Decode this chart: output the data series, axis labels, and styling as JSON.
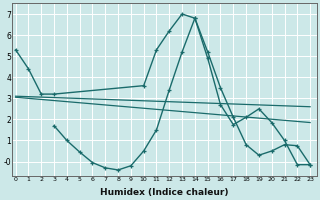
{
  "xlabel": "Humidex (Indice chaleur)",
  "bg_color": "#cce8e8",
  "line_color": "#1a6b6b",
  "grid_color": "#ffffff",
  "curve_upper": {
    "x": [
      0,
      1,
      2,
      3,
      10,
      11,
      12,
      13,
      14,
      15,
      16,
      17,
      18,
      19,
      20,
      21,
      22,
      23
    ],
    "y": [
      5.3,
      4.4,
      3.2,
      3.2,
      3.6,
      5.3,
      6.2,
      7.0,
      6.8,
      4.9,
      2.7,
      1.75,
      2.1,
      2.5,
      1.85,
      1.0,
      -0.15,
      -0.15
    ]
  },
  "curve_flat1": {
    "x": [
      0,
      23
    ],
    "y": [
      3.1,
      2.6
    ]
  },
  "curve_flat2": {
    "x": [
      0,
      23
    ],
    "y": [
      3.05,
      1.85
    ]
  },
  "curve_lower": {
    "x": [
      3,
      4,
      5,
      6,
      7,
      8,
      9,
      10,
      11,
      12,
      13,
      14,
      15,
      16,
      17,
      18,
      19,
      20,
      21,
      22,
      23
    ],
    "y": [
      1.7,
      1.0,
      0.45,
      -0.05,
      -0.3,
      -0.4,
      -0.2,
      0.5,
      1.5,
      3.4,
      5.2,
      6.8,
      5.2,
      3.5,
      2.1,
      0.8,
      0.3,
      0.5,
      0.8,
      0.75,
      -0.15
    ]
  },
  "ylim": [
    -0.7,
    7.5
  ],
  "xlim": [
    -0.3,
    23.5
  ],
  "yticks": [
    0,
    1,
    2,
    3,
    4,
    5,
    6,
    7
  ],
  "ytick_labels": [
    "-0",
    "1",
    "2",
    "3",
    "4",
    "5",
    "6",
    "7"
  ],
  "xticks": [
    0,
    1,
    2,
    3,
    4,
    5,
    6,
    7,
    8,
    9,
    10,
    11,
    12,
    13,
    14,
    15,
    16,
    17,
    18,
    19,
    20,
    21,
    22,
    23
  ]
}
